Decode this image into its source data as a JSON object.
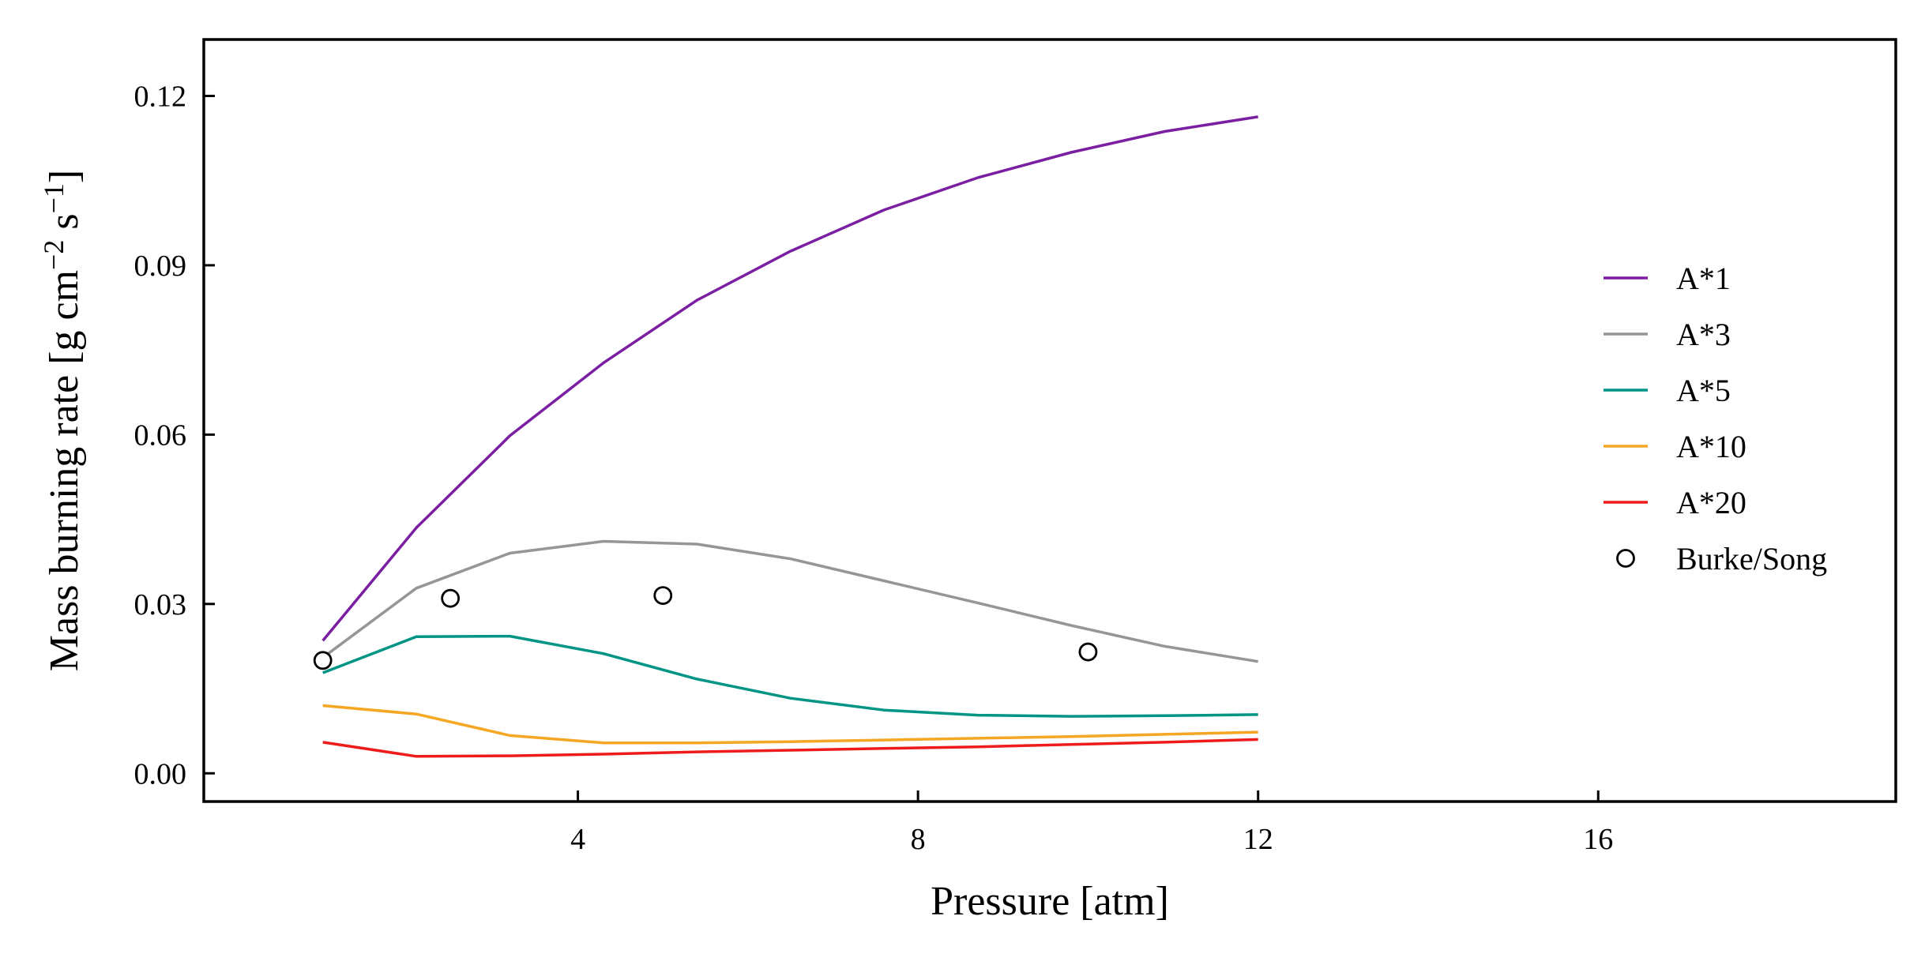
{
  "chart_data": {
    "type": "line",
    "title": "",
    "xlabel": "Pressure [atm]",
    "ylabel_main": "Mass burning rate [g cm",
    "ylabel_sup1": "−2",
    "ylabel_mid": " s",
    "ylabel_sup2": "−1",
    "ylabel_end": "]",
    "xlim": [
      -0.4,
      19.5
    ],
    "ylim": [
      -0.005,
      0.13
    ],
    "xticks": [
      4,
      8,
      12,
      16
    ],
    "yticks": [
      0.0,
      0.03,
      0.06,
      0.09,
      0.12
    ],
    "xtick_labels": [
      "4",
      "8",
      "12",
      "16"
    ],
    "ytick_labels": [
      "0.00",
      "0.03",
      "0.06",
      "0.09",
      "0.12"
    ],
    "legend_position": "center-right",
    "x": [
      1,
      2.1,
      3.2,
      4.3,
      5.4,
      6.5,
      7.6,
      8.7,
      9.8,
      10.9,
      12
    ],
    "series": [
      {
        "name": "A*1",
        "color": "#7B1FA2",
        "values": [
          0.0235,
          0.0435,
          0.0598,
          0.0727,
          0.0838,
          0.0925,
          0.0998,
          0.1055,
          0.11,
          0.1137,
          0.1163
        ]
      },
      {
        "name": "A*3",
        "color": "#969696",
        "values": [
          0.0205,
          0.0328,
          0.039,
          0.0411,
          0.0406,
          0.038,
          0.0341,
          0.0302,
          0.0262,
          0.0225,
          0.0198
        ]
      },
      {
        "name": "A*5",
        "color": "#009485",
        "values": [
          0.0178,
          0.0242,
          0.0243,
          0.0212,
          0.0167,
          0.0133,
          0.0112,
          0.0103,
          0.0101,
          0.0102,
          0.0104
        ]
      },
      {
        "name": "A*10",
        "color": "#F5A623",
        "values": [
          0.012,
          0.0105,
          0.0067,
          0.0054,
          0.0054,
          0.0056,
          0.0059,
          0.0062,
          0.0065,
          0.0069,
          0.0073
        ]
      },
      {
        "name": "A*20",
        "color": "#EE1C1C",
        "values": [
          0.0055,
          0.003,
          0.0031,
          0.0034,
          0.0038,
          0.0041,
          0.0044,
          0.0047,
          0.0051,
          0.0055,
          0.006
        ]
      }
    ],
    "scatter": {
      "name": "Burke/Song",
      "color": "#000000",
      "x": [
        1,
        2.5,
        5,
        10
      ],
      "y": [
        0.02,
        0.031,
        0.0315,
        0.0215
      ]
    }
  }
}
